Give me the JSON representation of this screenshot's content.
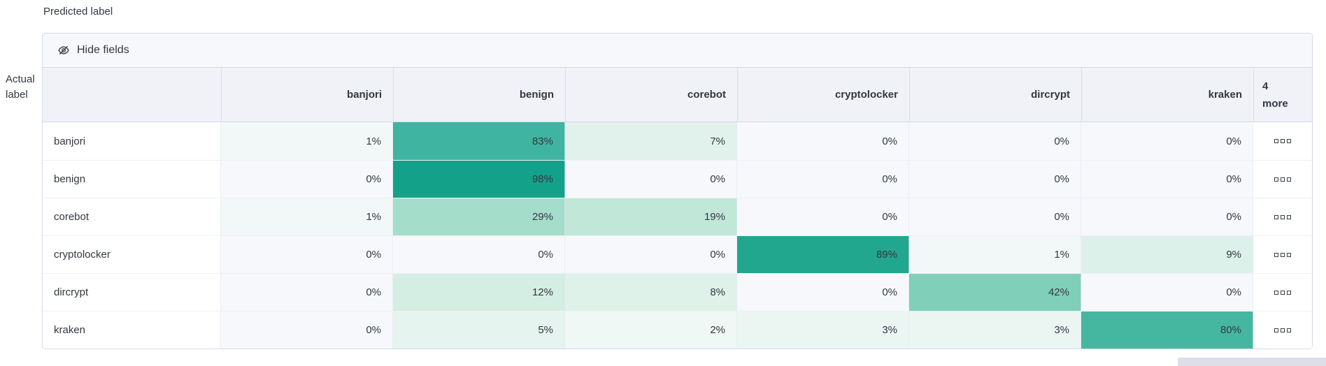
{
  "axes": {
    "predicted_label": "Predicted label",
    "actual_line1": "Actual",
    "actual_line2": "label"
  },
  "toolbar": {
    "hide_fields_label": "Hide fields"
  },
  "table": {
    "more_count": "4",
    "more_word": "more"
  },
  "chart_data": {
    "type": "heatmap",
    "x_label": "Predicted label",
    "y_label": "Actual label",
    "x_categories": [
      "banjori",
      "benign",
      "corebot",
      "cryptolocker",
      "dircrypt",
      "kraken"
    ],
    "y_categories": [
      "banjori",
      "benign",
      "corebot",
      "cryptolocker",
      "dircrypt",
      "kraken"
    ],
    "hidden_columns_count": 4,
    "values_unit": "%",
    "matrix": [
      [
        1,
        83,
        7,
        0,
        0,
        0
      ],
      [
        0,
        98,
        0,
        0,
        0,
        0
      ],
      [
        1,
        29,
        19,
        0,
        0,
        0
      ],
      [
        0,
        0,
        0,
        89,
        1,
        9
      ],
      [
        0,
        12,
        8,
        0,
        42,
        0
      ],
      [
        0,
        5,
        2,
        3,
        3,
        80
      ]
    ]
  },
  "colors": {
    "border": "#D3DAE6",
    "header_bg": "#F0F2F8",
    "toolbar_bg": "#F7F8FC",
    "text": "#343741",
    "accent_base": "#12A189",
    "heat": {
      "0": "#F6F8FC",
      "1": "#F2F8F8",
      "2": "#EFF8F5",
      "3": "#EBF6F2",
      "5": "#E5F4EE",
      "7": "#E1F2EC",
      "8": "#DFF2EA",
      "9": "#DCF1E9",
      "12": "#D4EEE4",
      "19": "#C1E7D9",
      "29": "#A5DDCB",
      "42": "#80CFB8",
      "80": "#45B7A1",
      "83": "#3FB4A0",
      "89": "#21A78D",
      "98": "#13A189"
    }
  }
}
